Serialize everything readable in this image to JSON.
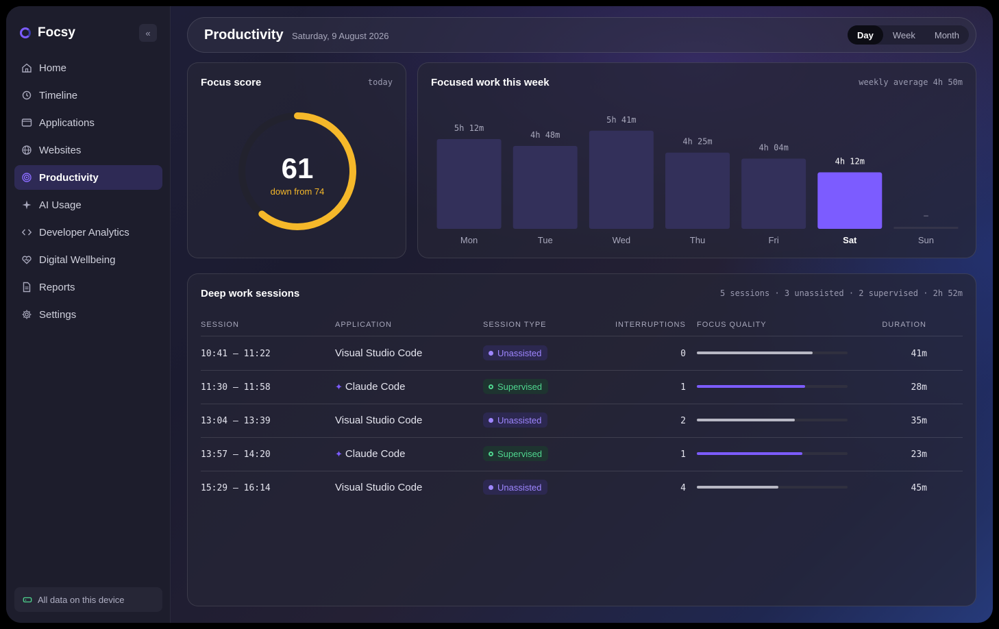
{
  "sidebar": {
    "brand": "Focsy",
    "nav": [
      {
        "label": "Home",
        "icon": "home-icon"
      },
      {
        "label": "Timeline",
        "icon": "history-icon"
      },
      {
        "label": "Applications",
        "icon": "window-icon"
      },
      {
        "label": "Websites",
        "icon": "globe-icon"
      },
      {
        "label": "Productivity",
        "icon": "target-icon",
        "active": true
      },
      {
        "label": "AI Usage",
        "icon": "sparkle-icon"
      },
      {
        "label": "Developer Analytics",
        "icon": "code-icon"
      },
      {
        "label": "Digital Wellbeing",
        "icon": "heart-icon"
      },
      {
        "label": "Reports",
        "icon": "document-icon"
      },
      {
        "label": "Settings",
        "icon": "gear-icon"
      }
    ],
    "device_label": "All data on this device"
  },
  "header": {
    "title": "Productivity",
    "date": "Saturday, 9 August 2026",
    "ranges": [
      "Day",
      "Week",
      "Month"
    ],
    "active_range": "Day"
  },
  "focus": {
    "title": "Focus score",
    "meta": "today",
    "value": "61",
    "sub": "down from 74",
    "score": 61,
    "max": 100,
    "color": "#f5b82a"
  },
  "week": {
    "title": "Focused work this week",
    "meta": "weekly average 4h 50m"
  },
  "chart_data": {
    "type": "bar",
    "title": "Focused work this week",
    "categories": [
      "Mon",
      "Tue",
      "Wed",
      "Thu",
      "Fri",
      "Sat",
      "Sun"
    ],
    "values": [
      312,
      288,
      341,
      265,
      244,
      252,
      0
    ],
    "value_labels": [
      "5h 12m",
      "4h 48m",
      "5h 41m",
      "4h 25m",
      "4h 04m",
      "4h 12m",
      "–"
    ],
    "unit": "minutes",
    "highlight": "Sat",
    "colors": {
      "default": "#33305a",
      "highlight": "#7c5cff"
    }
  },
  "sessions": {
    "title": "Deep work sessions",
    "meta": "5 sessions · 3 unassisted · 2 supervised · 2h 52m",
    "columns": [
      "SESSION",
      "APPLICATION",
      "SESSION TYPE",
      "INTERRUPTIONS",
      "FOCUS QUALITY",
      "DURATION"
    ],
    "rows": [
      {
        "session": "10:41 – 11:22",
        "app": "Visual Studio Code",
        "ai": false,
        "type": "Unassisted",
        "interruptions": "0",
        "quality": 0.77,
        "duration": "41m"
      },
      {
        "session": "11:30 – 11:58",
        "app": "Claude Code",
        "ai": true,
        "type": "Supervised",
        "interruptions": "1",
        "quality": 0.72,
        "duration": "28m"
      },
      {
        "session": "13:04 – 13:39",
        "app": "Visual Studio Code",
        "ai": false,
        "type": "Unassisted",
        "interruptions": "2",
        "quality": 0.65,
        "duration": "35m"
      },
      {
        "session": "13:57 – 14:20",
        "app": "Claude Code",
        "ai": true,
        "type": "Supervised",
        "interruptions": "1",
        "quality": 0.7,
        "duration": "23m"
      },
      {
        "session": "15:29 – 16:14",
        "app": "Visual Studio Code",
        "ai": false,
        "type": "Unassisted",
        "interruptions": "4",
        "quality": 0.54,
        "duration": "45m"
      }
    ]
  }
}
